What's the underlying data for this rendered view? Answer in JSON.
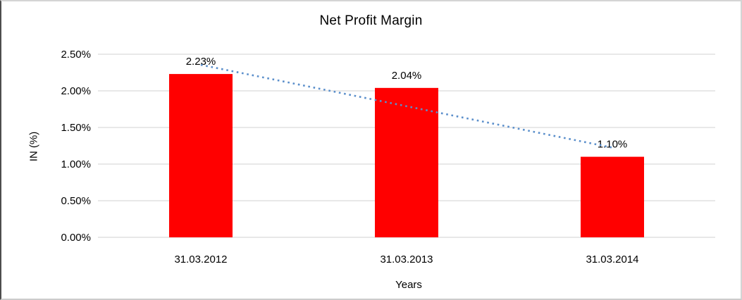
{
  "chart_data": {
    "type": "bar",
    "title": "Net Profit Margin",
    "categories": [
      "31.03.2012",
      "31.03.2013",
      "31.03.2014"
    ],
    "values": [
      2.23,
      2.04,
      1.1
    ],
    "data_labels": [
      "2.23%",
      "2.04%",
      "1.10%"
    ],
    "xlabel": "Years",
    "ylabel": "IN (%)",
    "ylim": [
      0,
      2.5
    ],
    "ytick_step": 0.5,
    "ytick_labels": [
      "0.00%",
      "0.50%",
      "1.00%",
      "1.50%",
      "2.00%",
      "2.50%"
    ],
    "grid": true,
    "legend": "none",
    "bar_color": "#FF0000",
    "gridline_color": "#D9D9D9",
    "trendline": {
      "type": "linear",
      "style": "dotted",
      "color": "#5B8FCB"
    }
  }
}
